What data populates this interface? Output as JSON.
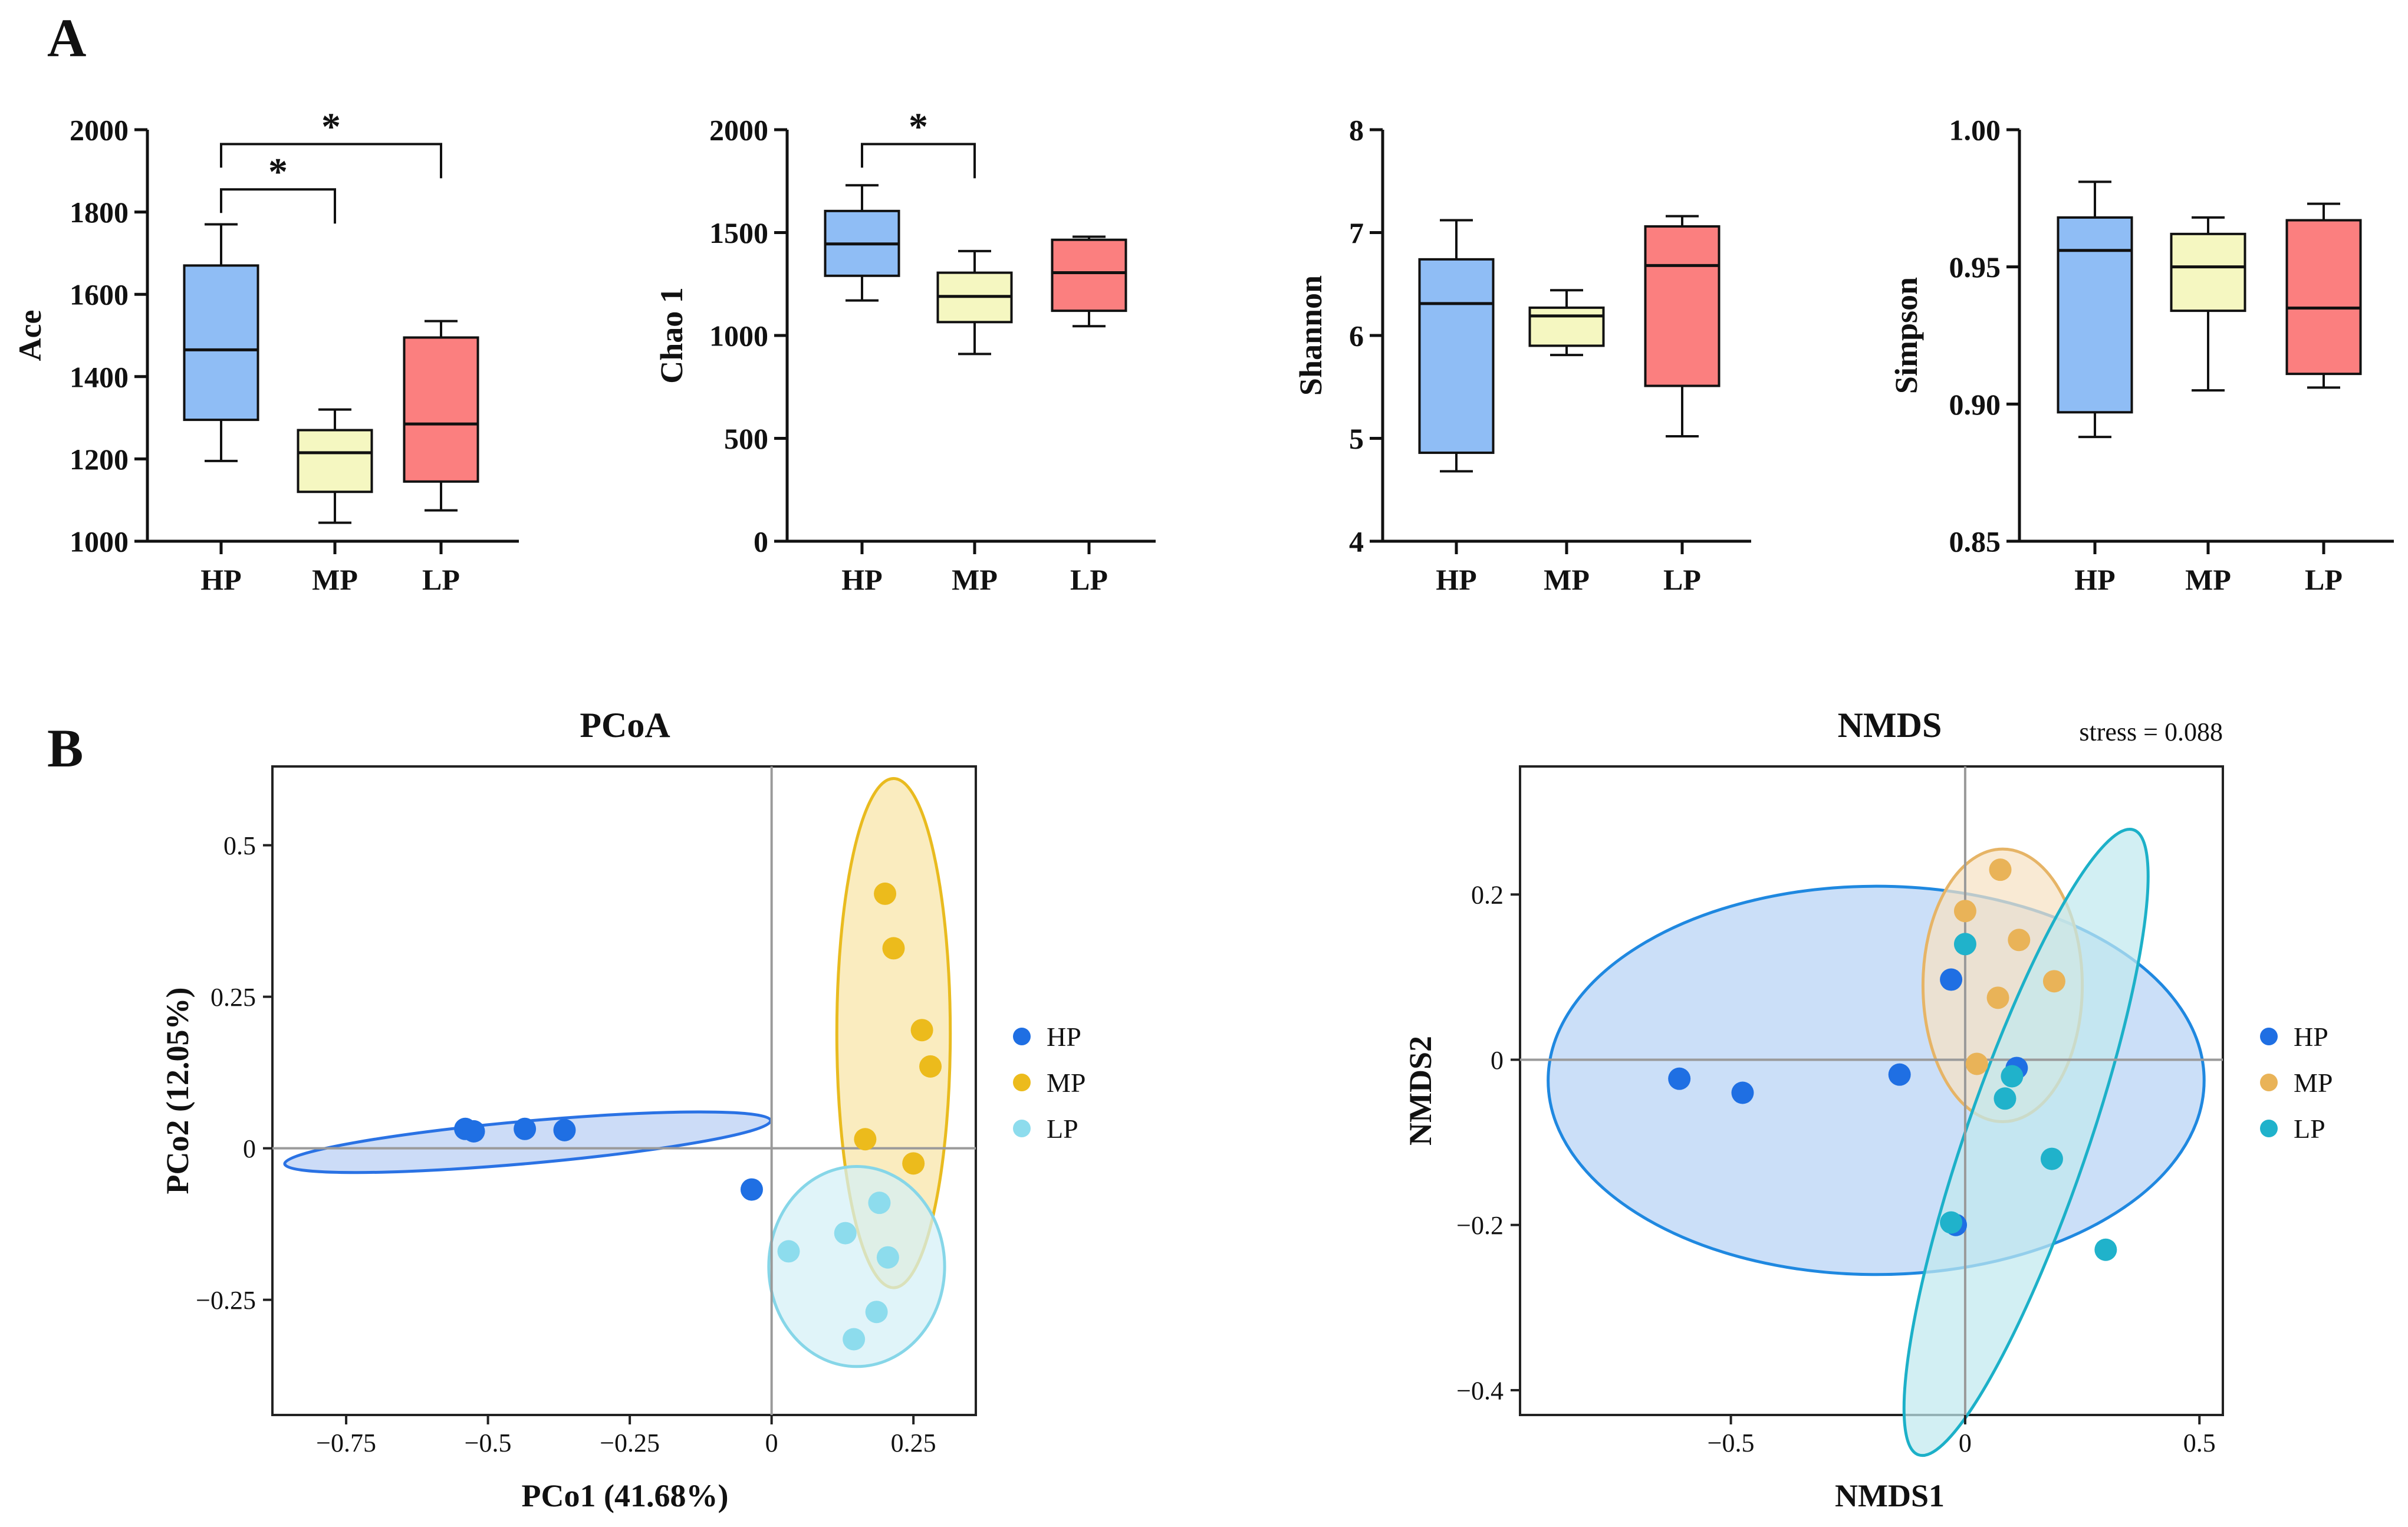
{
  "panels": {
    "a": "A",
    "b": "B"
  },
  "colors": {
    "box": {
      "HP": "#8fbdf5",
      "MP": "#f5f7c1",
      "LP": "#fb7f7f"
    },
    "pcoa_points": {
      "HP": "#1f6fe3",
      "MP": "#ecbb1c",
      "LP": "#8ddced"
    },
    "pcoa_ellipse_fill": {
      "HP": "#b8cff4",
      "MP": "#f8e5a6",
      "LP": "#d4f0f6"
    },
    "pcoa_ellipse_stroke": {
      "HP": "#2a72e4",
      "MP": "#e9bb1f",
      "LP": "#86d6e8"
    },
    "nmds_points": {
      "HP": "#1f6fe3",
      "MP": "#e9b358",
      "LP": "#20b2cb"
    },
    "nmds_ellipse_fill": {
      "HP": "#b7d3f5",
      "MP": "#f7e2c4",
      "LP": "#c0e9ee"
    },
    "nmds_ellipse_stroke": {
      "HP": "#1f88e0",
      "MP": "#e6b466",
      "LP": "#1cb0c8"
    }
  },
  "chart_data": [
    {
      "type": "box",
      "id": "ace",
      "ylabel": "Ace",
      "categories": [
        "HP",
        "MP",
        "LP"
      ],
      "ylim": [
        1000,
        2000
      ],
      "yticks": [
        "1000",
        "1200",
        "1400",
        "1600",
        "1800",
        "2000"
      ],
      "boxes": [
        {
          "group": "HP",
          "min": 1195,
          "q1": 1295,
          "median": 1465,
          "q3": 1670,
          "max": 1770
        },
        {
          "group": "MP",
          "min": 1045,
          "q1": 1120,
          "median": 1215,
          "q3": 1270,
          "max": 1320
        },
        {
          "group": "LP",
          "min": 1075,
          "q1": 1145,
          "median": 1285,
          "q3": 1495,
          "max": 1535
        }
      ],
      "significance": [
        {
          "from": "HP",
          "to": "MP",
          "y": 1855,
          "label": "*"
        },
        {
          "from": "HP",
          "to": "LP",
          "y": 1965,
          "label": "*"
        }
      ]
    },
    {
      "type": "box",
      "id": "chao1",
      "ylabel": "Chao 1",
      "categories": [
        "HP",
        "MP",
        "LP"
      ],
      "ylim": [
        0,
        2000
      ],
      "yticks": [
        "0",
        "500",
        "1000",
        "1500",
        "2000"
      ],
      "boxes": [
        {
          "group": "HP",
          "min": 1170,
          "q1": 1290,
          "median": 1445,
          "q3": 1605,
          "max": 1730
        },
        {
          "group": "MP",
          "min": 910,
          "q1": 1065,
          "median": 1190,
          "q3": 1305,
          "max": 1410
        },
        {
          "group": "LP",
          "min": 1045,
          "q1": 1120,
          "median": 1305,
          "q3": 1465,
          "max": 1480
        }
      ],
      "significance": [
        {
          "from": "HP",
          "to": "MP",
          "y": 1930,
          "label": "*"
        }
      ]
    },
    {
      "type": "box",
      "id": "shannon",
      "ylabel": "Shannon",
      "categories": [
        "HP",
        "MP",
        "LP"
      ],
      "ylim": [
        4,
        8
      ],
      "yticks": [
        "4",
        "5",
        "6",
        "7",
        "8"
      ],
      "boxes": [
        {
          "group": "HP",
          "min": 4.68,
          "q1": 4.86,
          "median": 6.31,
          "q3": 6.74,
          "max": 7.12
        },
        {
          "group": "MP",
          "min": 5.81,
          "q1": 5.9,
          "median": 6.19,
          "q3": 6.27,
          "max": 6.44
        },
        {
          "group": "LP",
          "min": 5.02,
          "q1": 5.51,
          "median": 6.68,
          "q3": 7.06,
          "max": 7.16
        }
      ],
      "significance": []
    },
    {
      "type": "box",
      "id": "simpson",
      "ylabel": "Simpson",
      "categories": [
        "HP",
        "MP",
        "LP"
      ],
      "ylim": [
        0.85,
        1.0
      ],
      "yticks": [
        "0.85",
        "0.90",
        "0.95",
        "1.00"
      ],
      "boxes": [
        {
          "group": "HP",
          "min": 0.888,
          "q1": 0.897,
          "median": 0.956,
          "q3": 0.968,
          "max": 0.981
        },
        {
          "group": "MP",
          "min": 0.905,
          "q1": 0.934,
          "median": 0.95,
          "q3": 0.962,
          "max": 0.968
        },
        {
          "group": "LP",
          "min": 0.906,
          "q1": 0.911,
          "median": 0.935,
          "q3": 0.967,
          "max": 0.973
        }
      ],
      "significance": []
    },
    {
      "type": "scatter",
      "id": "pcoa",
      "title": "PCoA",
      "xlabel": "PCo1 (41.68%)",
      "ylabel": "PCo2 (12.05%)",
      "xlim": [
        -0.88,
        0.36
      ],
      "ylim": [
        -0.44,
        0.63
      ],
      "xticks": [
        {
          "v": -0.75,
          "t": "−0.75"
        },
        {
          "v": -0.5,
          "t": "−0.5"
        },
        {
          "v": -0.25,
          "t": "−0.25"
        },
        {
          "v": 0,
          "t": "0"
        },
        {
          "v": 0.25,
          "t": "0.25"
        }
      ],
      "yticks": [
        {
          "v": -0.25,
          "t": "−0.25"
        },
        {
          "v": 0,
          "t": "0"
        },
        {
          "v": 0.25,
          "t": "0.25"
        },
        {
          "v": 0.5,
          "t": "0.5"
        }
      ],
      "legend": [
        "HP",
        "MP",
        "LP"
      ],
      "series": [
        {
          "name": "HP",
          "points": [
            [
              -0.54,
              0.032
            ],
            [
              -0.525,
              0.028
            ],
            [
              -0.435,
              0.032
            ],
            [
              -0.365,
              0.03
            ],
            [
              -0.035,
              -0.068
            ]
          ]
        },
        {
          "name": "MP",
          "points": [
            [
              0.2,
              0.42
            ],
            [
              0.215,
              0.33
            ],
            [
              0.265,
              0.195
            ],
            [
              0.28,
              0.135
            ],
            [
              0.165,
              0.015
            ],
            [
              0.25,
              -0.025
            ]
          ]
        },
        {
          "name": "LP",
          "points": [
            [
              0.03,
              -0.17
            ],
            [
              0.13,
              -0.14
            ],
            [
              0.19,
              -0.09
            ],
            [
              0.205,
              -0.18
            ],
            [
              0.185,
              -0.27
            ],
            [
              0.145,
              -0.315
            ]
          ]
        }
      ],
      "ellipses": [
        {
          "name": "HP",
          "cx": -0.43,
          "cy": 0.01,
          "rx": 0.43,
          "ry": 0.035,
          "angle_deg": -5.1
        },
        {
          "name": "MP",
          "cx": 0.215,
          "cy": 0.19,
          "rx": 0.1,
          "ry": 0.42,
          "angle_deg": 0
        },
        {
          "name": "LP",
          "cx": 0.15,
          "cy": -0.195,
          "rx": 0.155,
          "ry": 0.165,
          "angle_deg": 0
        }
      ]
    },
    {
      "type": "scatter",
      "id": "nmds",
      "title": "NMDS",
      "annotation": "stress = 0.088",
      "xlabel": "NMDS1",
      "ylabel": "NMDS2",
      "xlim": [
        -0.95,
        0.55
      ],
      "ylim": [
        -0.43,
        0.355
      ],
      "xticks": [
        {
          "v": -0.5,
          "t": "−0.5"
        },
        {
          "v": 0,
          "t": "0"
        },
        {
          "v": 0.5,
          "t": "0.5"
        }
      ],
      "yticks": [
        {
          "v": -0.4,
          "t": "−0.4"
        },
        {
          "v": -0.2,
          "t": "−0.2"
        },
        {
          "v": 0,
          "t": "0"
        },
        {
          "v": 0.2,
          "t": "0.2"
        }
      ],
      "legend": [
        "HP",
        "MP",
        "LP"
      ],
      "series": [
        {
          "name": "HP",
          "points": [
            [
              -0.61,
              -0.023
            ],
            [
              -0.475,
              -0.04
            ],
            [
              -0.14,
              -0.018
            ],
            [
              -0.03,
              0.097
            ],
            [
              0.11,
              -0.01
            ],
            [
              -0.02,
              -0.2
            ]
          ]
        },
        {
          "name": "MP",
          "points": [
            [
              0.075,
              0.23
            ],
            [
              0,
              0.18
            ],
            [
              0.115,
              0.145
            ],
            [
              0.19,
              0.095
            ],
            [
              0.07,
              0.075
            ],
            [
              0.025,
              -0.005
            ]
          ]
        },
        {
          "name": "LP",
          "points": [
            [
              0,
              0.14
            ],
            [
              0.1,
              -0.02
            ],
            [
              0.085,
              -0.047
            ],
            [
              0.185,
              -0.12
            ],
            [
              -0.03,
              -0.197
            ],
            [
              0.3,
              -0.23
            ]
          ]
        }
      ],
      "ellipses": [
        {
          "name": "HP",
          "cx": -0.19,
          "cy": -0.025,
          "rx": 0.7,
          "ry": 0.235,
          "angle_deg": 0
        },
        {
          "name": "MP",
          "cx": 0.08,
          "cy": 0.09,
          "rx": 0.17,
          "ry": 0.165,
          "angle_deg": 0
        },
        {
          "name": "LP",
          "cx": 0.13,
          "cy": -0.1,
          "rx": 0.13,
          "ry": 0.4,
          "angle_deg": 19
        }
      ]
    }
  ]
}
